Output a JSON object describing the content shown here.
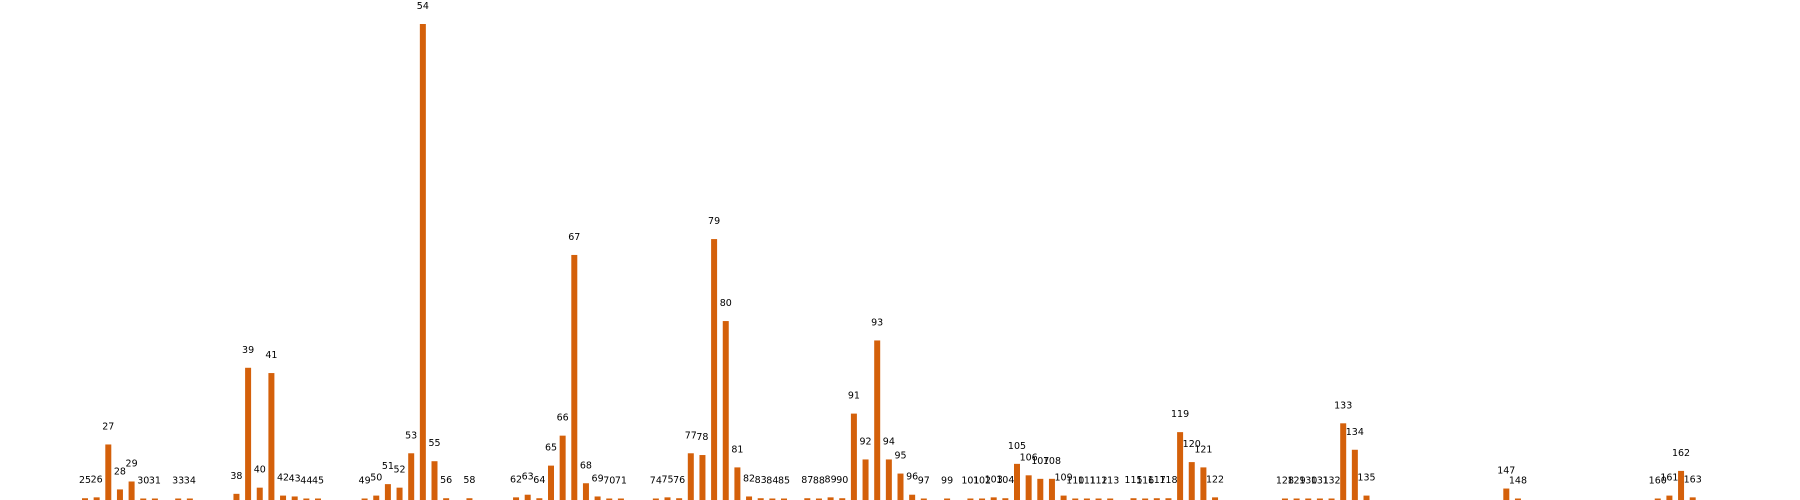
{
  "colors": {
    "bar": "#d4600a",
    "label": "#000000",
    "background": "#ffffff"
  },
  "chart_data": {
    "type": "bar",
    "title": "",
    "xlabel": "",
    "ylabel": "",
    "ylim": [
      0,
      54
    ],
    "grid": false,
    "axes_visible": false,
    "bars": [
      {
        "label": "25",
        "x": 25,
        "value": 0.2
      },
      {
        "label": "26",
        "x": 26,
        "value": 0.3
      },
      {
        "label": "27",
        "x": 27,
        "value": 6.3
      },
      {
        "label": "28",
        "x": 28,
        "value": 1.2
      },
      {
        "label": "29",
        "x": 29,
        "value": 2.1
      },
      {
        "label": "30",
        "x": 30,
        "value": 0.1
      },
      {
        "label": "31",
        "x": 31,
        "value": 0.1
      },
      {
        "label": "33",
        "x": 33,
        "value": 0.05
      },
      {
        "label": "34",
        "x": 34,
        "value": 0.05
      },
      {
        "label": "38",
        "x": 38,
        "value": 0.7
      },
      {
        "label": "39",
        "x": 39,
        "value": 15.0
      },
      {
        "label": "40",
        "x": 40,
        "value": 1.4
      },
      {
        "label": "41",
        "x": 41,
        "value": 14.4
      },
      {
        "label": "42",
        "x": 42,
        "value": 0.5
      },
      {
        "label": "43",
        "x": 43,
        "value": 0.4
      },
      {
        "label": "44",
        "x": 44,
        "value": 0.05
      },
      {
        "label": "45",
        "x": 45,
        "value": 0.05
      },
      {
        "label": "49",
        "x": 49,
        "value": 0.05
      },
      {
        "label": "50",
        "x": 50,
        "value": 0.5
      },
      {
        "label": "51",
        "x": 51,
        "value": 1.8
      },
      {
        "label": "52",
        "x": 52,
        "value": 1.4
      },
      {
        "label": "53",
        "x": 53,
        "value": 5.3
      },
      {
        "label": "54",
        "x": 54,
        "value": 54.0
      },
      {
        "label": "55",
        "x": 55,
        "value": 4.4
      },
      {
        "label": "56",
        "x": 56,
        "value": 0.2
      },
      {
        "label": "58",
        "x": 58,
        "value": 0.2
      },
      {
        "label": "62",
        "x": 62,
        "value": 0.3
      },
      {
        "label": "63",
        "x": 63,
        "value": 0.6
      },
      {
        "label": "64",
        "x": 64,
        "value": 0.2
      },
      {
        "label": "65",
        "x": 65,
        "value": 3.9
      },
      {
        "label": "66",
        "x": 66,
        "value": 7.3
      },
      {
        "label": "67",
        "x": 67,
        "value": 27.8
      },
      {
        "label": "68",
        "x": 68,
        "value": 1.9
      },
      {
        "label": "69",
        "x": 69,
        "value": 0.4
      },
      {
        "label": "70",
        "x": 70,
        "value": 0.05
      },
      {
        "label": "71",
        "x": 71,
        "value": 0.05
      },
      {
        "label": "74",
        "x": 74,
        "value": 0.1
      },
      {
        "label": "75",
        "x": 75,
        "value": 0.3
      },
      {
        "label": "76",
        "x": 76,
        "value": 0.2
      },
      {
        "label": "77",
        "x": 77,
        "value": 5.3
      },
      {
        "label": "78",
        "x": 78,
        "value": 5.1
      },
      {
        "label": "79",
        "x": 79,
        "value": 29.6
      },
      {
        "label": "80",
        "x": 80,
        "value": 20.3
      },
      {
        "label": "81",
        "x": 81,
        "value": 3.7
      },
      {
        "label": "82",
        "x": 82,
        "value": 0.4
      },
      {
        "label": "83",
        "x": 83,
        "value": 0.2
      },
      {
        "label": "84",
        "x": 84,
        "value": 0.05
      },
      {
        "label": "85",
        "x": 85,
        "value": 0.05
      },
      {
        "label": "87",
        "x": 87,
        "value": 0.2
      },
      {
        "label": "88",
        "x": 88,
        "value": 0.05
      },
      {
        "label": "89",
        "x": 89,
        "value": 0.3
      },
      {
        "label": "90",
        "x": 90,
        "value": 0.2
      },
      {
        "label": "91",
        "x": 91,
        "value": 9.8
      },
      {
        "label": "92",
        "x": 92,
        "value": 4.6
      },
      {
        "label": "93",
        "x": 93,
        "value": 18.1
      },
      {
        "label": "94",
        "x": 94,
        "value": 4.6
      },
      {
        "label": "95",
        "x": 95,
        "value": 3.0
      },
      {
        "label": "96",
        "x": 96,
        "value": 0.6
      },
      {
        "label": "97",
        "x": 97,
        "value": 0.05
      },
      {
        "label": "99",
        "x": 99,
        "value": 0.1
      },
      {
        "label": "101",
        "x": 101,
        "value": 0.1
      },
      {
        "label": "102",
        "x": 102,
        "value": 0.05
      },
      {
        "label": "103",
        "x": 103,
        "value": 0.3
      },
      {
        "label": "104",
        "x": 104,
        "value": 0.2
      },
      {
        "label": "105",
        "x": 105,
        "value": 4.1
      },
      {
        "label": "106",
        "x": 106,
        "value": 2.8
      },
      {
        "label": "107",
        "x": 107,
        "value": 2.4
      },
      {
        "label": "108",
        "x": 108,
        "value": 2.4
      },
      {
        "label": "109",
        "x": 109,
        "value": 0.5
      },
      {
        "label": "110",
        "x": 110,
        "value": 0.05
      },
      {
        "label": "111",
        "x": 111,
        "value": 0.05
      },
      {
        "label": "112",
        "x": 112,
        "value": 0.05
      },
      {
        "label": "113",
        "x": 113,
        "value": 0.05
      },
      {
        "label": "115",
        "x": 115,
        "value": 0.2
      },
      {
        "label": "116",
        "x": 116,
        "value": 0.1
      },
      {
        "label": "117",
        "x": 117,
        "value": 0.2
      },
      {
        "label": "118",
        "x": 118,
        "value": 0.2
      },
      {
        "label": "119",
        "x": 119,
        "value": 7.7
      },
      {
        "label": "120",
        "x": 120,
        "value": 4.3
      },
      {
        "label": "121",
        "x": 121,
        "value": 3.7
      },
      {
        "label": "122",
        "x": 122,
        "value": 0.3
      },
      {
        "label": "128",
        "x": 128,
        "value": 0.1
      },
      {
        "label": "129",
        "x": 129,
        "value": 0.1
      },
      {
        "label": "130",
        "x": 130,
        "value": 0.05
      },
      {
        "label": "131",
        "x": 131,
        "value": 0.1
      },
      {
        "label": "132",
        "x": 132,
        "value": 0.1
      },
      {
        "label": "133",
        "x": 133,
        "value": 8.7
      },
      {
        "label": "134",
        "x": 134,
        "value": 5.7
      },
      {
        "label": "135",
        "x": 135,
        "value": 0.5
      },
      {
        "label": "147",
        "x": 147,
        "value": 1.3
      },
      {
        "label": "148",
        "x": 148,
        "value": 0.1
      },
      {
        "label": "160",
        "x": 160,
        "value": 0.05
      },
      {
        "label": "161",
        "x": 161,
        "value": 0.5
      },
      {
        "label": "162",
        "x": 162,
        "value": 3.3
      },
      {
        "label": "163",
        "x": 163,
        "value": 0.3
      }
    ]
  }
}
